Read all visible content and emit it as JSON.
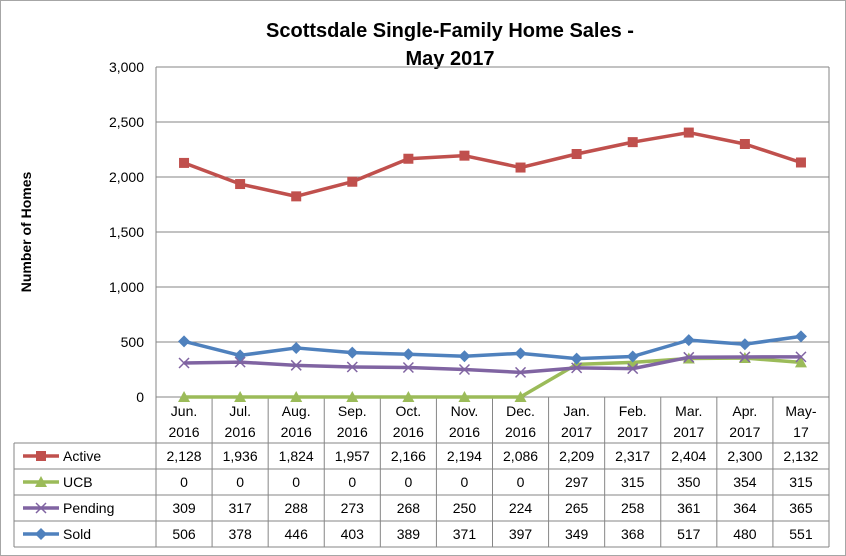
{
  "chart_data": {
    "type": "line",
    "title_line1": "Scottsdale Single-Family Home Sales -",
    "title_line2": "May 2017",
    "xlabel": "",
    "ylabel": "Number of Homes",
    "ylim": [
      0,
      3000
    ],
    "yticks": [
      "0",
      "500",
      "1,000",
      "1,500",
      "2,000",
      "2,500",
      "3,000"
    ],
    "ytick_values": [
      0,
      500,
      1000,
      1500,
      2000,
      2500,
      3000
    ],
    "grid": true,
    "legend": "data-table",
    "categories": [
      [
        "Jun.",
        "2016"
      ],
      [
        "Jul.",
        "2016"
      ],
      [
        "Aug.",
        "2016"
      ],
      [
        "Sep.",
        "2016"
      ],
      [
        "Oct.",
        "2016"
      ],
      [
        "Nov.",
        "2016"
      ],
      [
        "Dec.",
        "2016"
      ],
      [
        "Jan.",
        "2017"
      ],
      [
        "Feb.",
        "2017"
      ],
      [
        "Mar.",
        "2017"
      ],
      [
        "Apr.",
        "2017"
      ],
      [
        "May-",
        "17"
      ]
    ],
    "series": [
      {
        "name": "Active",
        "color": "#c0504d",
        "marker": "square",
        "values": [
          2128,
          1936,
          1824,
          1957,
          2166,
          2194,
          2086,
          2209,
          2317,
          2404,
          2300,
          2132
        ],
        "labels": [
          "2,128",
          "1,936",
          "1,824",
          "1,957",
          "2,166",
          "2,194",
          "2,086",
          "2,209",
          "2,317",
          "2,404",
          "2,300",
          "2,132"
        ]
      },
      {
        "name": "UCB",
        "color": "#9bbb59",
        "marker": "triangle",
        "values": [
          0,
          0,
          0,
          0,
          0,
          0,
          0,
          297,
          315,
          350,
          354,
          315
        ],
        "labels": [
          "0",
          "0",
          "0",
          "0",
          "0",
          "0",
          "0",
          "297",
          "315",
          "350",
          "354",
          "315"
        ]
      },
      {
        "name": "Pending",
        "color": "#8064a2",
        "marker": "x",
        "values": [
          309,
          317,
          288,
          273,
          268,
          250,
          224,
          265,
          258,
          361,
          364,
          365
        ],
        "labels": [
          "309",
          "317",
          "288",
          "273",
          "268",
          "250",
          "224",
          "265",
          "258",
          "361",
          "364",
          "365"
        ]
      },
      {
        "name": "Sold",
        "color": "#4f81bd",
        "marker": "diamond",
        "values": [
          506,
          378,
          446,
          403,
          389,
          371,
          397,
          349,
          368,
          517,
          480,
          551
        ],
        "labels": [
          "506",
          "378",
          "446",
          "403",
          "389",
          "371",
          "397",
          "349",
          "368",
          "517",
          "480",
          "551"
        ]
      }
    ]
  }
}
